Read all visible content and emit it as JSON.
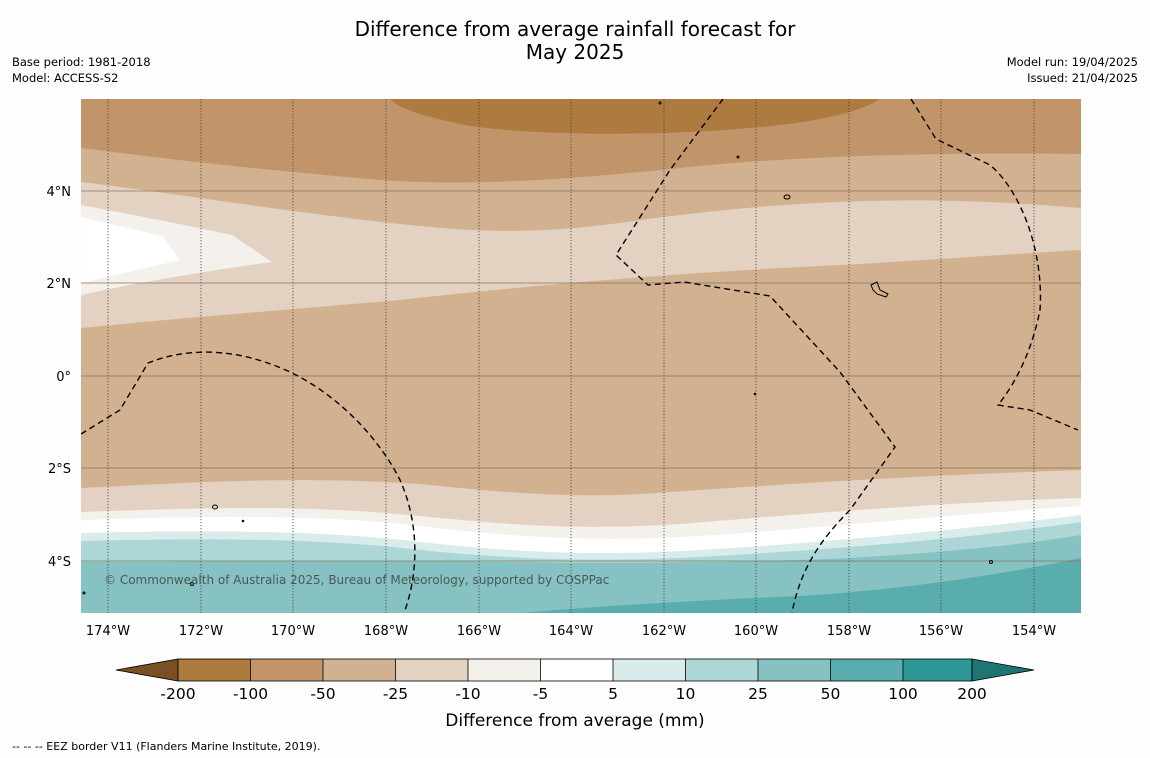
{
  "title_line1": "Difference from average rainfall forecast for",
  "title_line2": "May 2025",
  "base_period": "Base period: 1981-2018",
  "model": "Model: ACCESS-S2",
  "model_run": "Model run: 19/04/2025",
  "issued": "Issued: 21/04/2025",
  "lon_ticks": [
    "174°W",
    "172°W",
    "170°W",
    "168°W",
    "166°W",
    "164°W",
    "162°W",
    "160°W",
    "158°W",
    "156°W",
    "154°W"
  ],
  "lat_ticks": [
    "4°N",
    "2°N",
    "0°",
    "2°S",
    "4°S"
  ],
  "copyright": "© Commonwealth of Australia 2025, Bureau of Meteorology, supported by COSPPac",
  "colorbar": {
    "ticks": [
      "-200",
      "-100",
      "-50",
      "-25",
      "-10",
      "-5",
      "5",
      "10",
      "25",
      "50",
      "100",
      "200"
    ],
    "colors": [
      "#7a4f24",
      "#ad7a40",
      "#c19569",
      "#d2b190",
      "#e3d2c1",
      "#f4f0eb",
      "#ffffff",
      "#d9eceb",
      "#acd7d6",
      "#85c2c1",
      "#5aadad",
      "#2e9896",
      "#1f7573"
    ],
    "label": "Difference from average (mm)"
  },
  "footnote": "--  --  -- EEZ border V11 (Flanders Marine Institute, 2019)."
}
